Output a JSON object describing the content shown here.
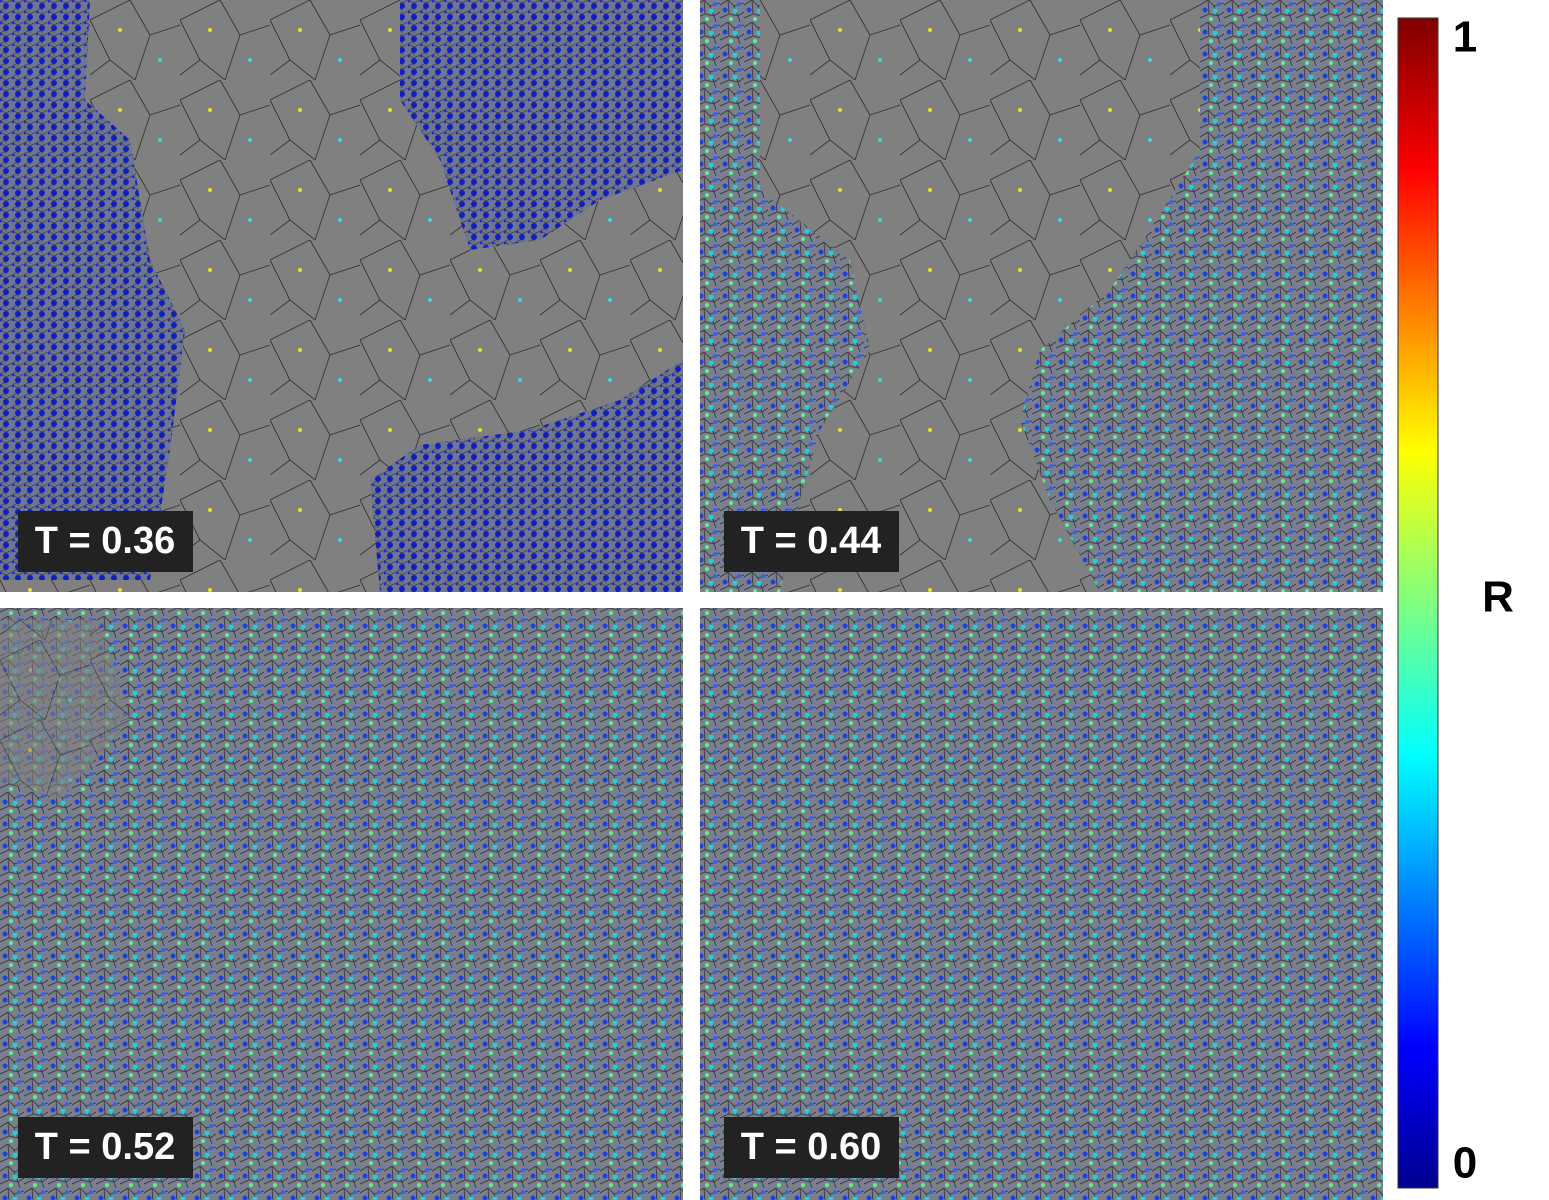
{
  "panels": [
    {
      "label": "T = 0.36"
    },
    {
      "label": "T = 0.44"
    },
    {
      "label": "T = 0.52"
    },
    {
      "label": "T = 0.60"
    }
  ],
  "colorbar": {
    "label": "R",
    "max": 1,
    "min": 0
  }
}
